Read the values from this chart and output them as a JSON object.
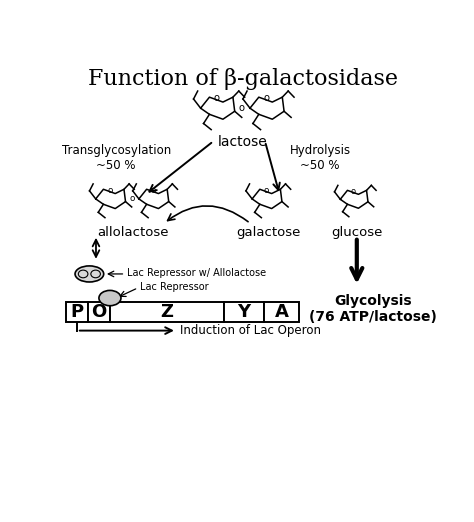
{
  "title": "Function of β-galactosidase",
  "title_fontsize": 16,
  "background_color": "#ffffff",
  "text_color": "#000000",
  "figsize": [
    4.74,
    5.22
  ],
  "dpi": 100,
  "labels": {
    "lactose": "lactose",
    "transglycosylation": "Transglycosylation\n~50 %",
    "hydrolysis": "Hydrolysis\n~50 %",
    "allolactose": "allolactose",
    "galactose": "galactose",
    "glucose": "glucose",
    "glycolysis": "Glycolysis\n(76 ATP/lactose)",
    "lac_repressor_allolactose": "Lac Repressor w/ Allolactose",
    "lac_repressor": "Lac Repressor",
    "induction": "Induction of Lac Operon",
    "P": "P",
    "O": "O",
    "Z": "Z",
    "Y": "Y",
    "A": "A"
  }
}
